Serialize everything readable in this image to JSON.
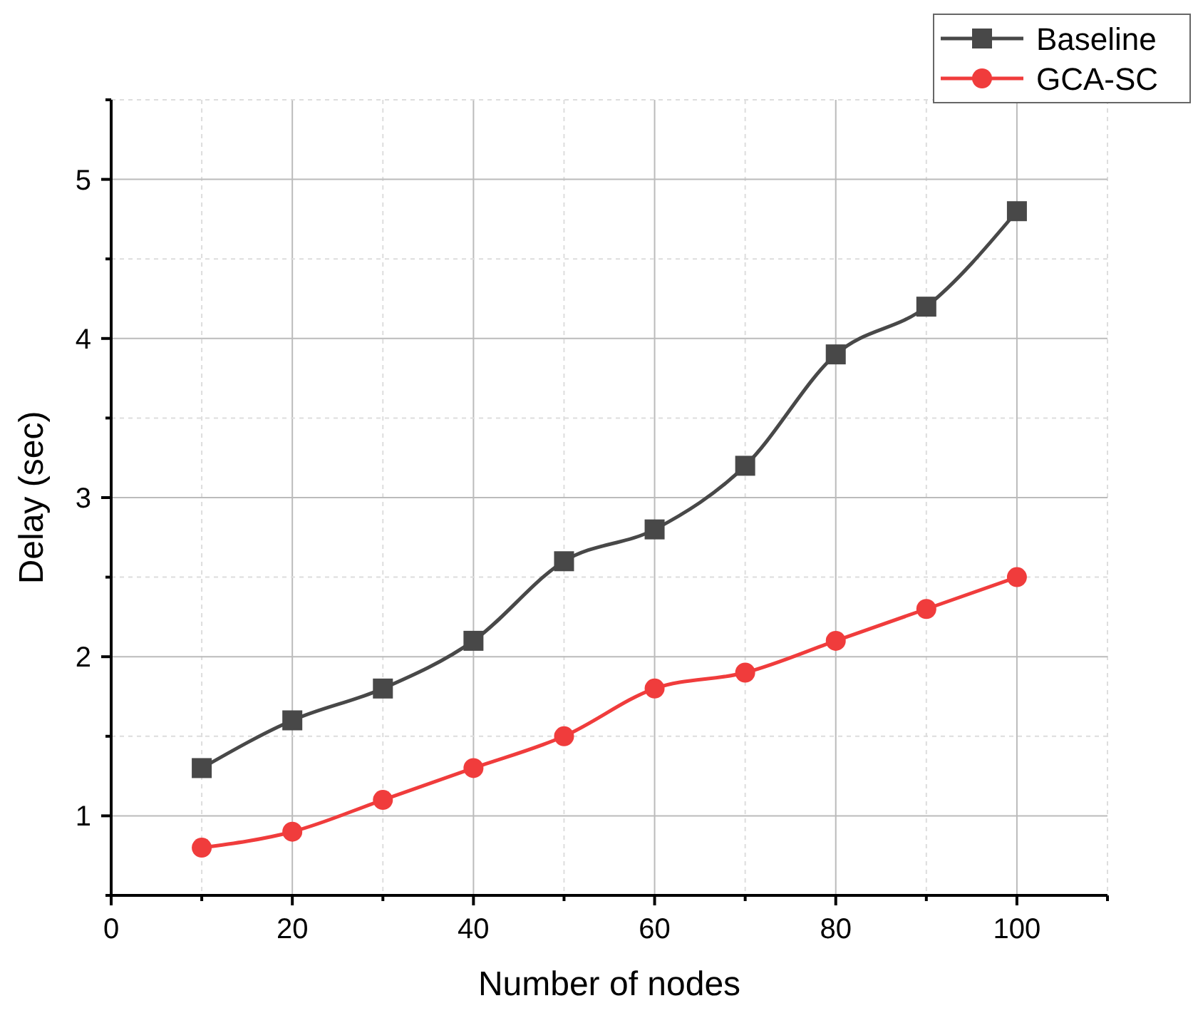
{
  "chart_data": {
    "type": "line",
    "xlabel": "Number of nodes",
    "ylabel": "Delay (sec)",
    "x": [
      10,
      20,
      30,
      40,
      50,
      60,
      70,
      80,
      90,
      100
    ],
    "series": [
      {
        "name": "Baseline",
        "color": "#484848",
        "marker": "square",
        "values": [
          1.3,
          1.6,
          1.8,
          2.1,
          2.6,
          2.8,
          3.2,
          3.9,
          4.2,
          4.8
        ]
      },
      {
        "name": "GCA-SC",
        "color": "#f03c3c",
        "marker": "circle",
        "values": [
          0.8,
          0.9,
          1.1,
          1.3,
          1.5,
          1.8,
          1.9,
          2.1,
          2.3,
          2.5
        ]
      }
    ],
    "xlim": [
      0,
      110
    ],
    "xticks": [
      0,
      {
        "value": 10,
        "label": null
      },
      20,
      {
        "value": 30,
        "label": null
      },
      40,
      {
        "value": 50,
        "label": null
      },
      60,
      {
        "value": 70,
        "label": null
      },
      80,
      {
        "value": 90,
        "label": null
      },
      100,
      {
        "value": 110,
        "label": null
      }
    ],
    "ylim": [
      0.5,
      5.5
    ],
    "yticks": [
      {
        "value": 0.5,
        "label": null
      },
      1,
      {
        "value": 1.5,
        "label": null
      },
      2,
      {
        "value": 2.5,
        "label": null
      },
      3,
      {
        "value": 3.5,
        "label": null
      },
      4,
      {
        "value": 4.5,
        "label": null
      },
      5,
      {
        "value": 5.5,
        "label": null
      }
    ],
    "grid": true,
    "legend": "top right",
    "line_style": "solid"
  }
}
